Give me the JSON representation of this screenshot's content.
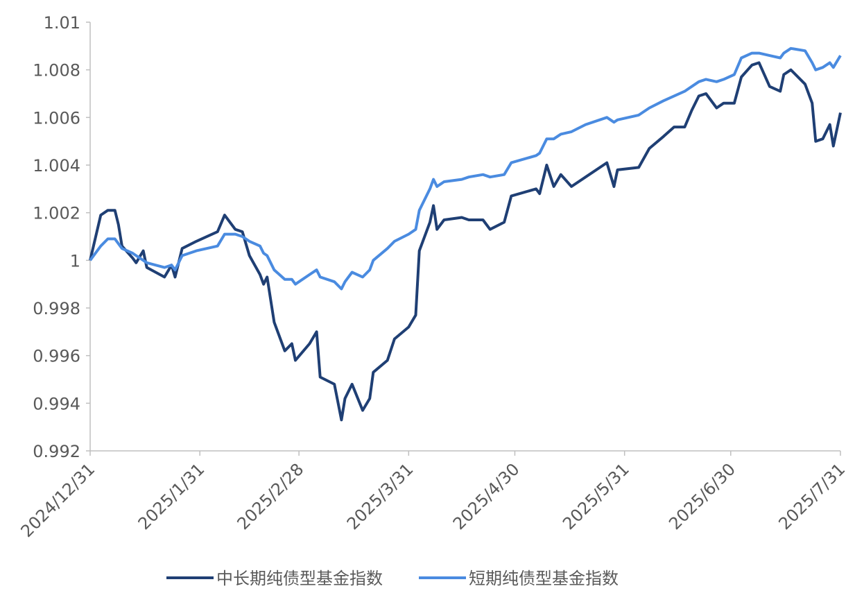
{
  "chart_data": {
    "type": "line",
    "x": [
      "2024/12/31",
      "2025/1/3",
      "2025/1/5",
      "2025/1/7",
      "2025/1/8",
      "2025/1/9",
      "2025/1/12",
      "2025/1/13",
      "2025/1/15",
      "2025/1/16",
      "2025/1/21",
      "2025/1/23",
      "2025/1/24",
      "2025/1/26",
      "2025/1/30",
      "2025/2/5",
      "2025/2/7",
      "2025/2/10",
      "2025/2/12",
      "2025/2/14",
      "2025/2/17",
      "2025/2/18",
      "2025/2/19",
      "2025/2/21",
      "2025/2/24",
      "2025/2/26",
      "2025/2/27",
      "2025/3/3",
      "2025/3/5",
      "2025/3/6",
      "2025/3/10",
      "2025/3/12",
      "2025/3/13",
      "2025/3/15",
      "2025/3/18",
      "2025/3/20",
      "2025/3/21",
      "2025/3/25",
      "2025/3/27",
      "2025/3/31",
      "2025/4/2",
      "2025/4/3",
      "2025/4/6",
      "2025/4/7",
      "2025/4/8",
      "2025/4/10",
      "2025/4/15",
      "2025/4/17",
      "2025/4/21",
      "2025/4/23",
      "2025/4/27",
      "2025/4/29",
      "2025/5/6",
      "2025/5/7",
      "2025/5/9",
      "2025/5/11",
      "2025/5/13",
      "2025/5/16",
      "2025/5/20",
      "2025/5/26",
      "2025/5/28",
      "2025/5/29",
      "2025/6/4",
      "2025/6/7",
      "2025/6/11",
      "2025/6/14",
      "2025/6/17",
      "2025/6/19",
      "2025/6/21",
      "2025/6/23",
      "2025/6/26",
      "2025/6/28",
      "2025/7/1",
      "2025/7/3",
      "2025/7/6",
      "2025/7/8",
      "2025/7/11",
      "2025/7/14",
      "2025/7/15",
      "2025/7/17",
      "2025/7/21",
      "2025/7/23",
      "2025/7/24",
      "2025/7/26",
      "2025/7/28",
      "2025/7/29",
      "2025/7/31"
    ],
    "series": [
      {
        "name": "中长期纯债型基金指数",
        "color": "#1f3f74",
        "values": [
          1.0,
          1.0019,
          1.0021,
          1.0021,
          1.0015,
          1.0006,
          1.0001,
          0.9999,
          1.0004,
          0.9997,
          0.9993,
          0.9998,
          0.9993,
          1.0005,
          1.0008,
          1.0012,
          1.0019,
          1.0013,
          1.0012,
          1.0002,
          0.9994,
          0.999,
          0.9993,
          0.9974,
          0.9962,
          0.9965,
          0.9958,
          0.9965,
          0.997,
          0.9951,
          0.9948,
          0.9933,
          0.9942,
          0.9948,
          0.9937,
          0.9942,
          0.9953,
          0.9958,
          0.9967,
          0.9972,
          0.9977,
          1.0004,
          1.0016,
          1.0023,
          1.0013,
          1.0017,
          1.0018,
          1.0017,
          1.0017,
          1.0013,
          1.0016,
          1.0027,
          1.003,
          1.0028,
          1.004,
          1.0031,
          1.0036,
          1.0031,
          1.0035,
          1.0041,
          1.0031,
          1.0038,
          1.0039,
          1.0047,
          1.0052,
          1.0056,
          1.0056,
          1.0063,
          1.0069,
          1.007,
          1.0064,
          1.0066,
          1.0066,
          1.0077,
          1.0082,
          1.0083,
          1.0073,
          1.0071,
          1.0078,
          1.008,
          1.0074,
          1.0066,
          1.005,
          1.0051,
          1.0057,
          1.0048,
          1.0062
        ]
      },
      {
        "name": "短期纯债型基金指数",
        "color": "#4a8be0",
        "values": [
          1.0,
          1.0006,
          1.0009,
          1.0009,
          1.0007,
          1.0005,
          1.0003,
          1.0002,
          1.0,
          0.9999,
          0.9997,
          0.9998,
          0.9996,
          1.0002,
          1.0004,
          1.0006,
          1.0011,
          1.0011,
          1.001,
          1.0008,
          1.0006,
          1.0003,
          1.0002,
          0.9996,
          0.9992,
          0.9992,
          0.999,
          0.9994,
          0.9996,
          0.9993,
          0.9991,
          0.9988,
          0.9991,
          0.9995,
          0.9993,
          0.9996,
          1.0,
          1.0005,
          1.0008,
          1.0011,
          1.0013,
          1.0021,
          1.003,
          1.0034,
          1.0031,
          1.0033,
          1.0034,
          1.0035,
          1.0036,
          1.0035,
          1.0036,
          1.0041,
          1.0044,
          1.0045,
          1.0051,
          1.0051,
          1.0053,
          1.0054,
          1.0057,
          1.006,
          1.0058,
          1.0059,
          1.0061,
          1.0064,
          1.0067,
          1.0069,
          1.0071,
          1.0073,
          1.0075,
          1.0076,
          1.0075,
          1.0076,
          1.0078,
          1.0085,
          1.0087,
          1.0087,
          1.0086,
          1.0085,
          1.0087,
          1.0089,
          1.0088,
          1.0083,
          1.008,
          1.0081,
          1.0083,
          1.0081,
          1.0086
        ]
      }
    ],
    "xlim": [
      "2024/12/31",
      "2025/7/31"
    ],
    "xticks": [
      "2024/12/31",
      "2025/1/31",
      "2025/2/28",
      "2025/3/31",
      "2025/4/30",
      "2025/5/31",
      "2025/6/30",
      "2025/7/31"
    ],
    "ylim": [
      0.992,
      1.01
    ],
    "yticks": [
      0.992,
      0.994,
      0.996,
      0.998,
      1,
      1.002,
      1.004,
      1.006,
      1.008,
      1.01
    ],
    "grid": false,
    "legend": "bottom"
  }
}
